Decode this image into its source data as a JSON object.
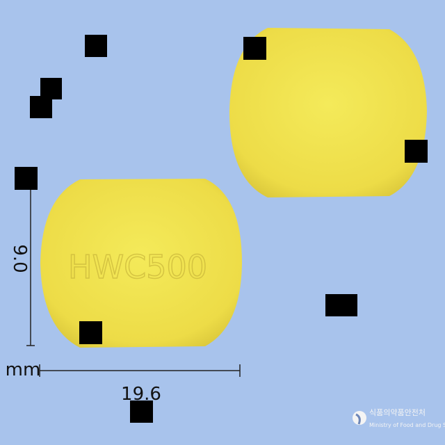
{
  "image": {
    "imprint": "HWC500",
    "height_label": "9.0",
    "unit_label": "mm",
    "width_label": "19.6",
    "logo": {
      "korean": "식품의약품안전처",
      "english": "Ministry of Food and Drug Safety"
    }
  }
}
